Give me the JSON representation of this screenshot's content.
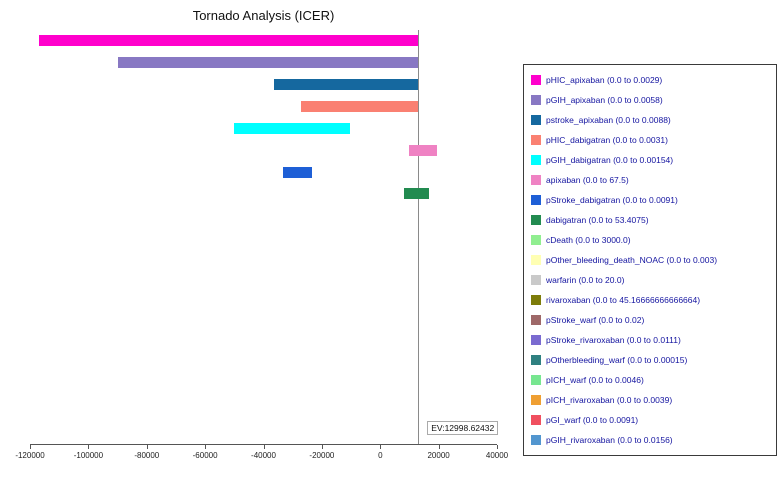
{
  "title": "Tornado Analysis (ICER)",
  "ev_label": "EV:12998.62432",
  "chart_data": {
    "type": "bar",
    "subtype": "tornado",
    "orientation": "horizontal",
    "title": "Tornado Analysis (ICER)",
    "xlabel": "",
    "ylabel": "",
    "xlim": [
      -120000,
      40000
    ],
    "x_ticks": [
      -120000,
      -100000,
      -80000,
      -60000,
      -40000,
      -20000,
      0,
      20000,
      40000
    ],
    "grid": false,
    "legend_position": "right",
    "ev": 12998.62432,
    "parameters": [
      {
        "name": "pHIC_apixaban",
        "label": "pHIC_apixaban (0.0 to 0.0029)",
        "color": "#ff00cc",
        "bar_low": -117000,
        "bar_high": 12998.62432
      },
      {
        "name": "pGIH_apixaban",
        "label": "pGIH_apixaban (0.0 to 0.0058)",
        "color": "#8878c3",
        "bar_low": -90000,
        "bar_high": 12998.62432
      },
      {
        "name": "pstroke_apixaban",
        "label": "pstroke_apixaban (0.0 to 0.0088)",
        "color": "#15689f",
        "bar_low": -36400,
        "bar_high": 12998.62432
      },
      {
        "name": "pHIC_dabigatran",
        "label": "pHIC_dabigatran (0.0 to 0.0031)",
        "color": "#fa8072",
        "bar_low": -27000,
        "bar_high": 12998.62432
      },
      {
        "name": "pGIH_dabigatran",
        "label": "pGIH_dabigatran (0.0 to 0.00154)",
        "color": "#00ffff",
        "bar_low": -50000,
        "bar_high": -10400
      },
      {
        "name": "apixaban",
        "label": "apixaban (0.0 to 67.5)",
        "color": "#ef82c3",
        "bar_low": 9800,
        "bar_high": 19400
      },
      {
        "name": "pStroke_dabigatran",
        "label": "pStroke_dabigatran (0.0 to 0.0091)",
        "color": "#1e5fd6",
        "bar_low": -33300,
        "bar_high": -23400
      },
      {
        "name": "dabigatran",
        "label": "dabigatran (0.0 to 53.4075)",
        "color": "#228b50",
        "bar_low": 8100,
        "bar_high": 16700
      },
      {
        "name": "cDeath",
        "label": "cDeath (0.0 to 3000.0)",
        "color": "#90ee90",
        "bar_low": 12998.62432,
        "bar_high": 12998.62432
      },
      {
        "name": "pOther_bleeding_death_NOAC",
        "label": "pOther_bleeding_death_NOAC (0.0 to 0.003)",
        "color": "#ffffb3",
        "bar_low": 12998.62432,
        "bar_high": 12998.62432
      },
      {
        "name": "warfarin",
        "label": "warfarin (0.0 to 20.0)",
        "color": "#c9c9c9",
        "bar_low": 12998.62432,
        "bar_high": 12998.62432
      },
      {
        "name": "rivaroxaban",
        "label": "rivaroxaban (0.0 to 45.16666666666664)",
        "color": "#7d7c0a",
        "bar_low": 12998.62432,
        "bar_high": 12998.62432
      },
      {
        "name": "pStroke_warf",
        "label": "pStroke_warf (0.0 to 0.02)",
        "color": "#9e6868",
        "bar_low": 12998.62432,
        "bar_high": 12998.62432
      },
      {
        "name": "pStroke_rivaroxaban",
        "label": "pStroke_rivaroxaban (0.0 to 0.0111)",
        "color": "#7a6ad0",
        "bar_low": 12998.62432,
        "bar_high": 12998.62432
      },
      {
        "name": "pOtherbleeding_warf",
        "label": "pOtherbleeding_warf (0.0 to 0.00015)",
        "color": "#2f8080",
        "bar_low": 12998.62432,
        "bar_high": 12998.62432
      },
      {
        "name": "pICH_warf",
        "label": "pICH_warf (0.0 to 0.0046)",
        "color": "#77e690",
        "bar_low": 12998.62432,
        "bar_high": 12998.62432
      },
      {
        "name": "pICH_rivaroxaban",
        "label": "pICH_rivaroxaban (0.0 to 0.0039)",
        "color": "#ef9f32",
        "bar_low": 12998.62432,
        "bar_high": 12998.62432
      },
      {
        "name": "pGI_warf",
        "label": "pGI_warf (0.0 to 0.0091)",
        "color": "#f04f5f",
        "bar_low": 12998.62432,
        "bar_high": 12998.62432
      },
      {
        "name": "pGIH_rivaroxaban",
        "label": "pGIH_rivaroxaban (0.0 to 0.0156)",
        "color": "#5296cf",
        "bar_low": 12998.62432,
        "bar_high": 12998.62432
      }
    ]
  }
}
